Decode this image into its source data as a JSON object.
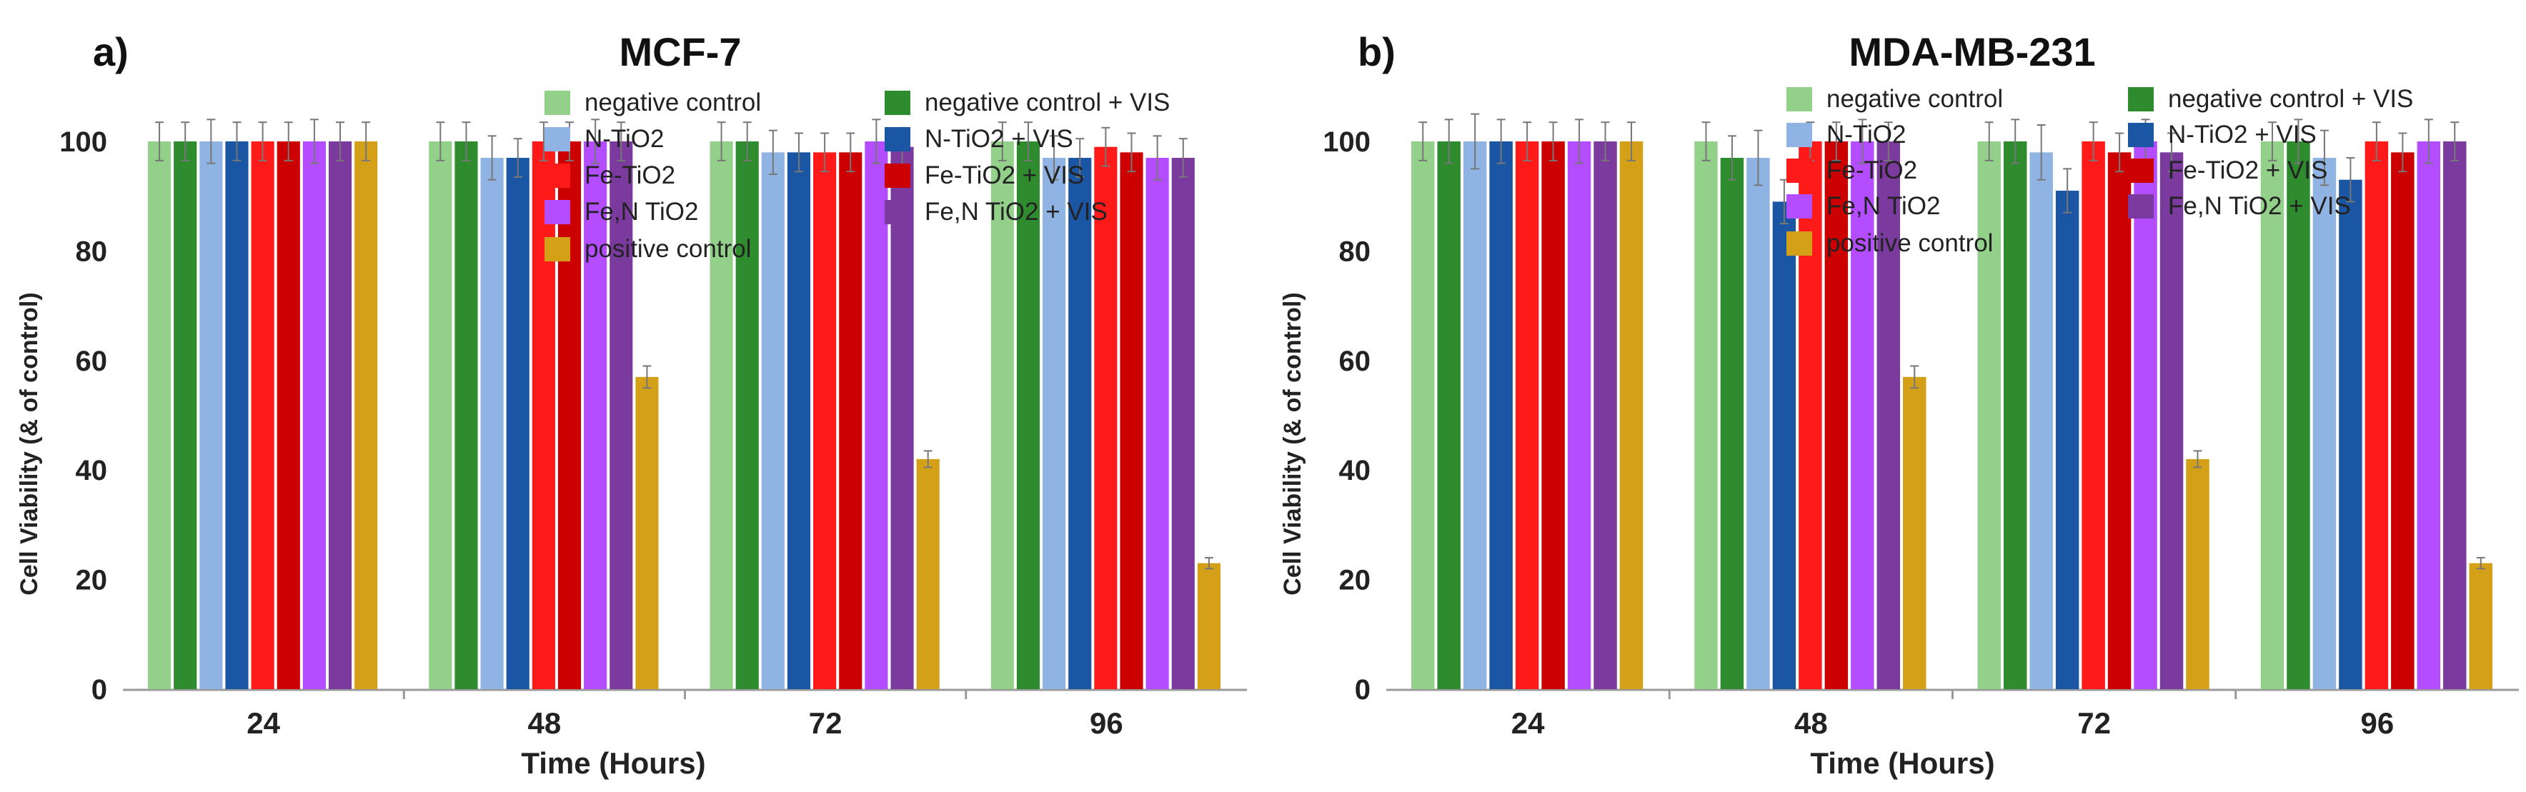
{
  "chart_data": [
    {
      "type": "bar",
      "panel_label": "a)",
      "title": "MCF-7",
      "xlabel": "Time (Hours)",
      "ylabel": "Cell Viability (& of control)",
      "ylim": [
        0,
        100
      ],
      "yticks": [
        0,
        20,
        40,
        60,
        80,
        100
      ],
      "categories": [
        "24",
        "48",
        "72",
        "96"
      ],
      "series": [
        {
          "name": "negative control",
          "color": "#93d08a",
          "values": [
            100,
            100,
            100,
            100
          ],
          "errors": [
            3.5,
            3.5,
            3.5,
            3.5
          ]
        },
        {
          "name": "negative control + VIS",
          "color": "#2e8b2e",
          "values": [
            100,
            100,
            100,
            100
          ],
          "errors": [
            3.5,
            3.5,
            3.5,
            3.5
          ]
        },
        {
          "name": "N-TiO2",
          "color": "#8fb4e3",
          "values": [
            100,
            97,
            98,
            97
          ],
          "errors": [
            4,
            4,
            4,
            4
          ]
        },
        {
          "name": "N-TiO2 + VIS",
          "color": "#1a56a3",
          "values": [
            100,
            97,
            98,
            97
          ],
          "errors": [
            3.5,
            3.5,
            3.5,
            3.5
          ]
        },
        {
          "name": "Fe-TiO2",
          "color": "#ff1a1a",
          "values": [
            100,
            100,
            98,
            99
          ],
          "errors": [
            3.5,
            3.5,
            3.5,
            3.5
          ]
        },
        {
          "name": "Fe-TiO2 + VIS",
          "color": "#cc0000",
          "values": [
            100,
            100,
            98,
            98
          ],
          "errors": [
            3.5,
            3.5,
            3.5,
            3.5
          ]
        },
        {
          "name": "Fe,N TiO2",
          "color": "#b34dff",
          "values": [
            100,
            100,
            100,
            97
          ],
          "errors": [
            4,
            4,
            4,
            4
          ]
        },
        {
          "name": "Fe,N TiO2 + VIS",
          "color": "#7b3a9e",
          "values": [
            100,
            100,
            99,
            97
          ],
          "errors": [
            3.5,
            3.5,
            3.5,
            3.5
          ]
        },
        {
          "name": "positive control",
          "color": "#d4a017",
          "values": [
            100,
            57,
            42,
            23
          ],
          "errors": [
            3.5,
            2,
            1.5,
            1
          ]
        }
      ]
    },
    {
      "type": "bar",
      "panel_label": "b)",
      "title": "MDA-MB-231",
      "xlabel": "Time (Hours)",
      "ylabel": "Cell Viability (& of control)",
      "ylim": [
        0,
        100
      ],
      "yticks": [
        0,
        20,
        40,
        60,
        80,
        100
      ],
      "categories": [
        "24",
        "48",
        "72",
        "96"
      ],
      "series": [
        {
          "name": "negative control",
          "color": "#93d08a",
          "values": [
            100,
            100,
            100,
            100
          ],
          "errors": [
            3.5,
            3.5,
            3.5,
            3.5
          ]
        },
        {
          "name": "negative control + VIS",
          "color": "#2e8b2e",
          "values": [
            100,
            97,
            100,
            100
          ],
          "errors": [
            4,
            4,
            4,
            4
          ]
        },
        {
          "name": "N-TiO2",
          "color": "#8fb4e3",
          "values": [
            100,
            97,
            98,
            97
          ],
          "errors": [
            5,
            5,
            5,
            5
          ]
        },
        {
          "name": "N-TiO2 + VIS",
          "color": "#1a56a3",
          "values": [
            100,
            89,
            91,
            93
          ],
          "errors": [
            4,
            4,
            4,
            4
          ]
        },
        {
          "name": "Fe-TiO2",
          "color": "#ff1a1a",
          "values": [
            100,
            100,
            100,
            100
          ],
          "errors": [
            3.5,
            3.5,
            3.5,
            3.5
          ]
        },
        {
          "name": "Fe-TiO2 + VIS",
          "color": "#cc0000",
          "values": [
            100,
            100,
            98,
            98
          ],
          "errors": [
            3.5,
            3.5,
            3.5,
            3.5
          ]
        },
        {
          "name": "Fe,N TiO2",
          "color": "#b34dff",
          "values": [
            100,
            100,
            100,
            100
          ],
          "errors": [
            4,
            4,
            4,
            4
          ]
        },
        {
          "name": "Fe,N TiO2 + VIS",
          "color": "#7b3a9e",
          "values": [
            100,
            100,
            98,
            100
          ],
          "errors": [
            3.5,
            3.5,
            3.5,
            3.5
          ]
        },
        {
          "name": "positive control",
          "color": "#d4a017",
          "values": [
            100,
            57,
            42,
            23
          ],
          "errors": [
            3.5,
            2,
            1.5,
            1
          ]
        }
      ]
    }
  ]
}
